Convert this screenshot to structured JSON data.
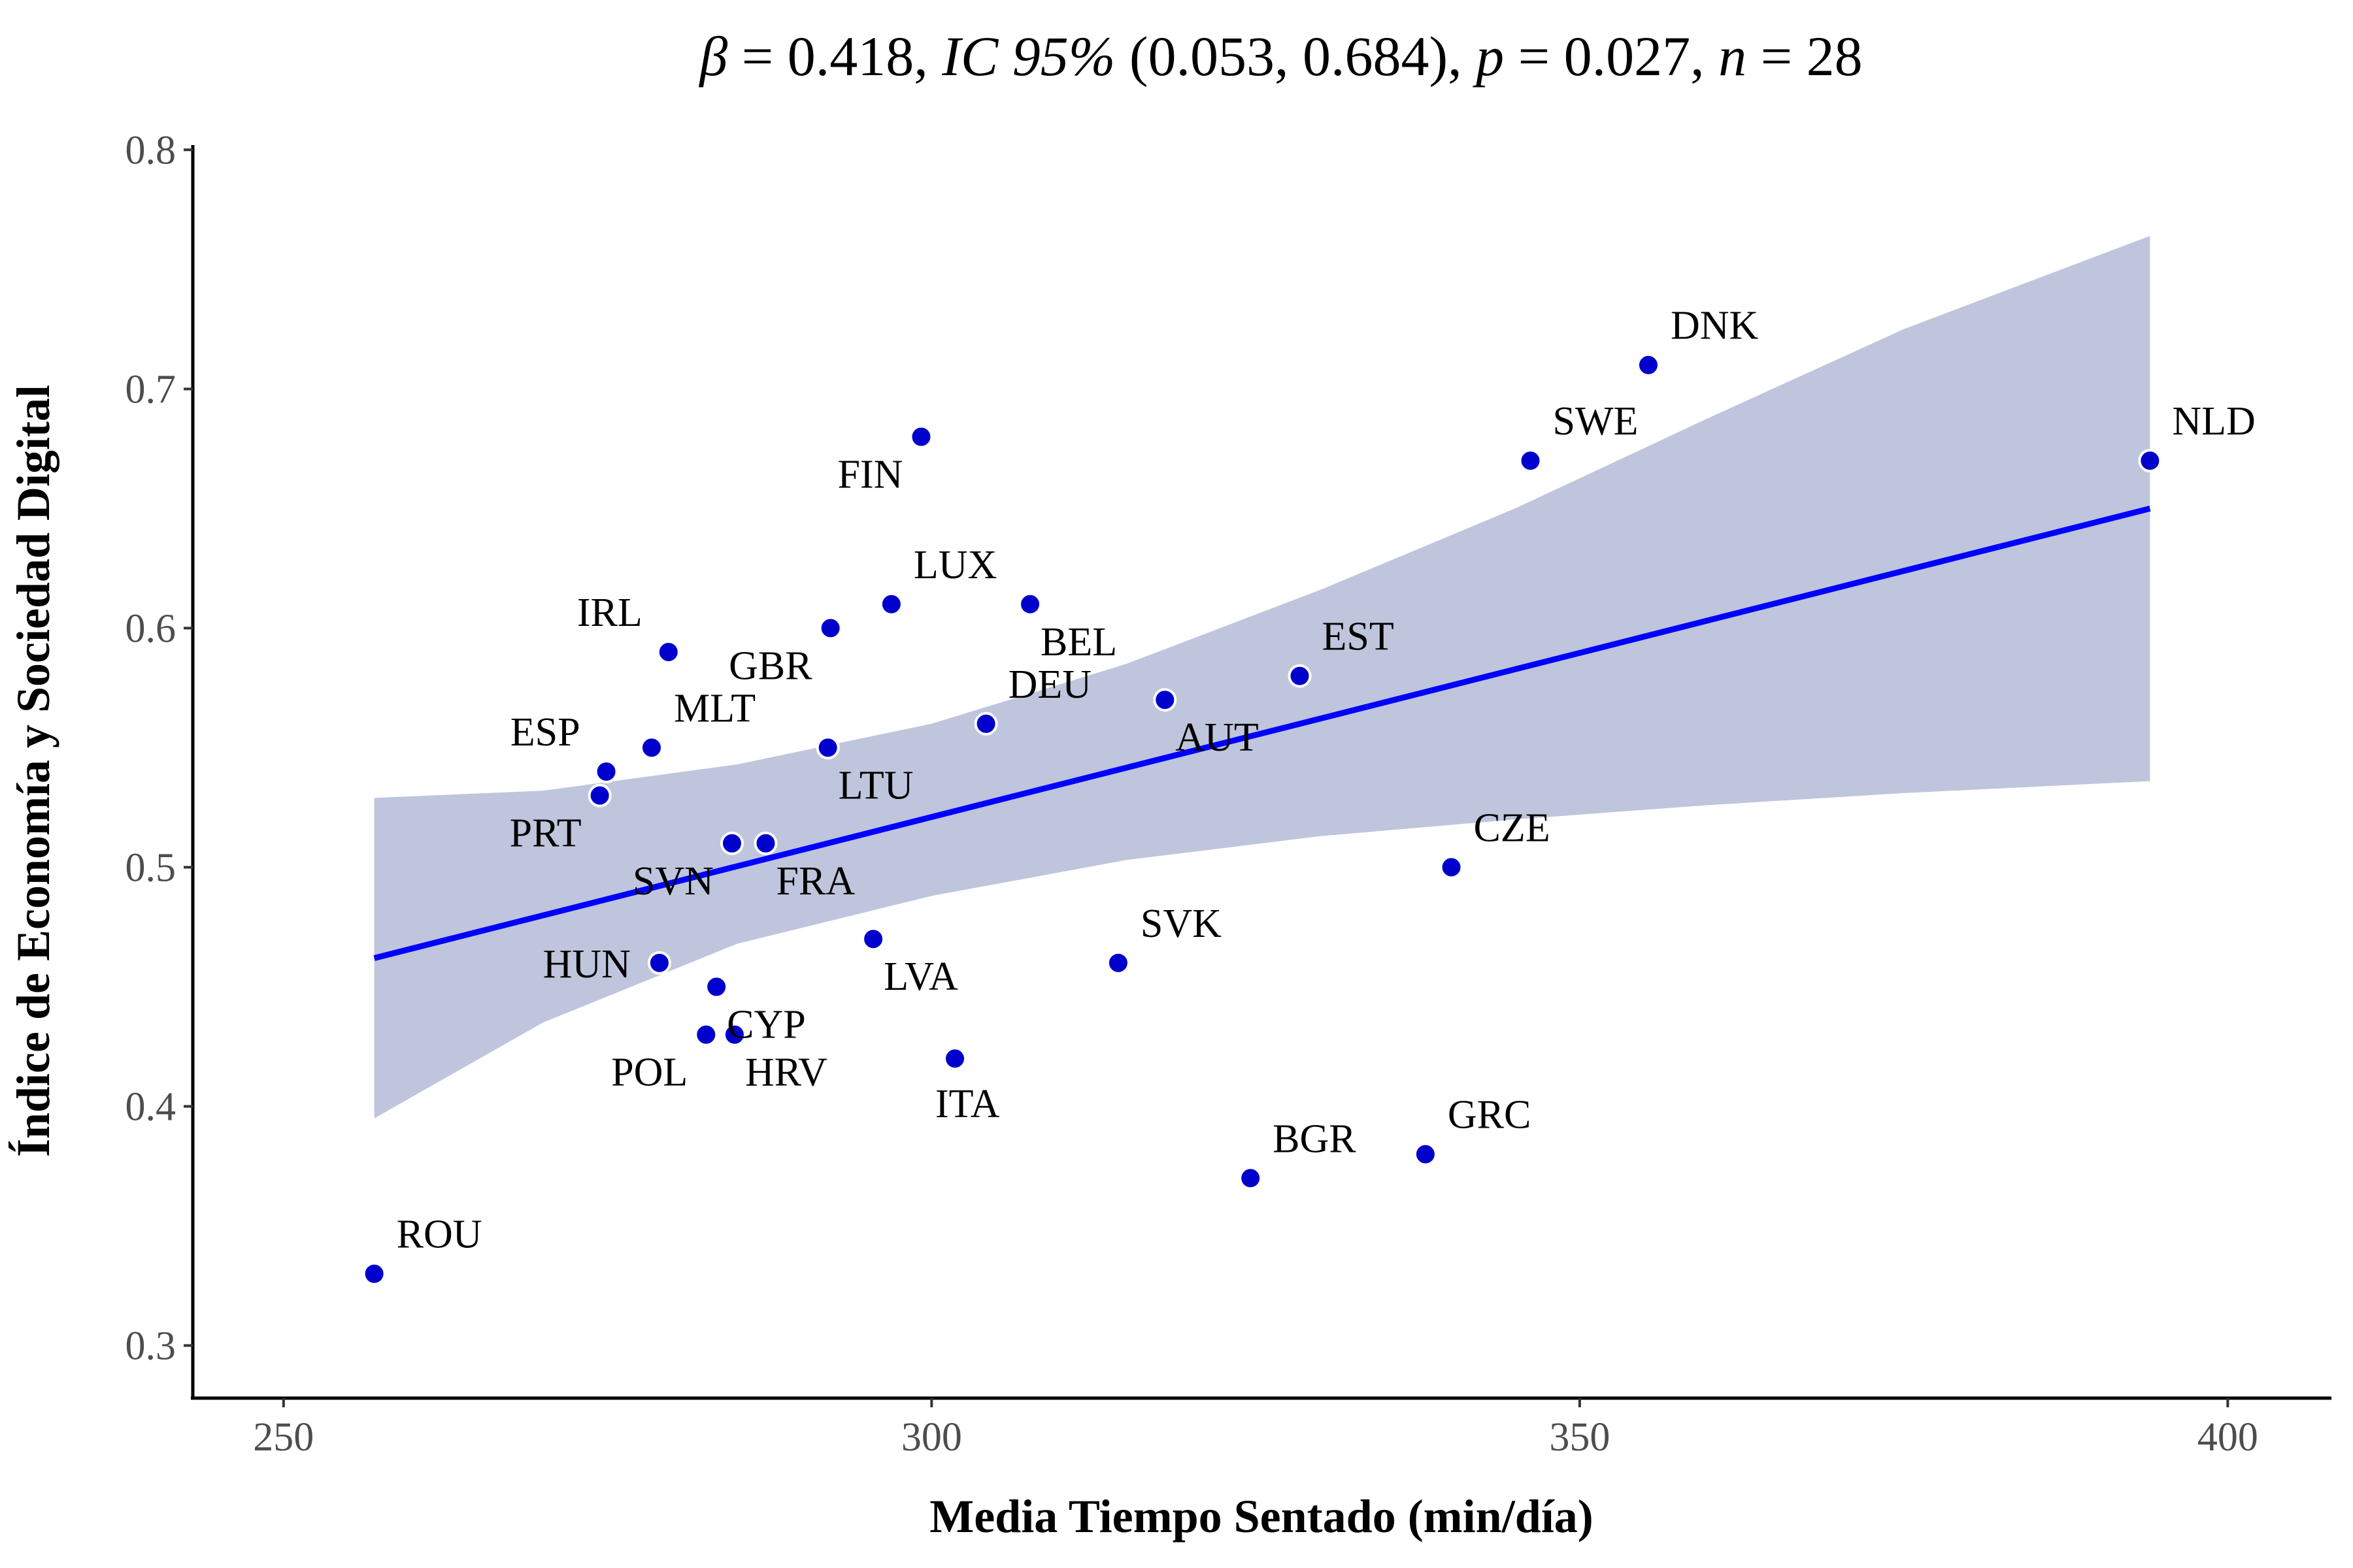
{
  "chart_data": {
    "type": "scatter",
    "title": {
      "beta_symbol": "β",
      "beta_value": " = 0.418, ",
      "ci_label": "IC 95%",
      "ci_value": " (0.053, 0.684), ",
      "p_symbol": "p",
      "p_value": " = 0.027, ",
      "n_symbol": "n",
      "n_value": " = 28"
    },
    "xlabel": "Media Tiempo Sentado (min/día)",
    "ylabel": "Índice de Economía y Sociedad Digital",
    "xlim": [
      243,
      408
    ],
    "ylim": [
      0.278,
      0.802
    ],
    "xticks": [
      250,
      300,
      350,
      400
    ],
    "yticks": [
      0.3,
      0.4,
      0.5,
      0.6,
      0.7,
      0.8
    ],
    "xtick_labels": [
      "250",
      "300",
      "350",
      "400"
    ],
    "ytick_labels": [
      "0.3",
      "0.4",
      "0.5",
      "0.6",
      "0.7",
      "0.8"
    ],
    "grid": false,
    "colors": {
      "points": "#0000cc",
      "point_outline": "#ffffff",
      "line": "#0000ff",
      "ribbon": "#bfc5dc"
    },
    "regression": {
      "x": [
        257,
        394
      ],
      "y": [
        0.462,
        0.65
      ]
    },
    "ci_band": {
      "x": [
        257,
        270,
        285,
        300,
        315,
        330,
        345,
        360,
        375,
        394
      ],
      "lower": [
        0.395,
        0.435,
        0.468,
        0.488,
        0.503,
        0.513,
        0.52,
        0.526,
        0.531,
        0.536
      ],
      "upper": [
        0.529,
        0.532,
        0.543,
        0.56,
        0.585,
        0.616,
        0.65,
        0.688,
        0.725,
        0.764
      ]
    },
    "points": [
      {
        "label": "ROU",
        "x": 257,
        "y": 0.33,
        "anchor": "ne"
      },
      {
        "label": "PRT",
        "x": 274.4,
        "y": 0.53,
        "anchor": "sw"
      },
      {
        "label": "ESP",
        "x": 274.9,
        "y": 0.54,
        "anchor": "nw"
      },
      {
        "label": "MLT",
        "x": 278.4,
        "y": 0.55,
        "anchor": "ne"
      },
      {
        "label": "HUN",
        "x": 279,
        "y": 0.46,
        "anchor": "w"
      },
      {
        "label": "IRL",
        "x": 279.7,
        "y": 0.59,
        "anchor": "nw"
      },
      {
        "label": "POL",
        "x": 282.6,
        "y": 0.43,
        "anchor": "sw"
      },
      {
        "label": "CYP",
        "x": 283.4,
        "y": 0.45,
        "anchor": "se"
      },
      {
        "label": "SVN",
        "x": 284.6,
        "y": 0.51,
        "anchor": "sw"
      },
      {
        "label": "HRV",
        "x": 284.8,
        "y": 0.43,
        "anchor": "se"
      },
      {
        "label": "FRA",
        "x": 287.2,
        "y": 0.51,
        "anchor": "se"
      },
      {
        "label": "LTU",
        "x": 292,
        "y": 0.55,
        "anchor": "se"
      },
      {
        "label": "GBR",
        "x": 292.2,
        "y": 0.6,
        "anchor": "sw"
      },
      {
        "label": "LVA",
        "x": 295.5,
        "y": 0.47,
        "anchor": "se"
      },
      {
        "label": "LUX",
        "x": 296.9,
        "y": 0.61,
        "anchor": "ne"
      },
      {
        "label": "FIN",
        "x": 299.2,
        "y": 0.68,
        "anchor": "sw"
      },
      {
        "label": "ITA",
        "x": 301.8,
        "y": 0.42,
        "anchor": "s"
      },
      {
        "label": "DEU",
        "x": 304.2,
        "y": 0.56,
        "anchor": "ne"
      },
      {
        "label": "BEL",
        "x": 307.6,
        "y": 0.61,
        "anchor": "se"
      },
      {
        "label": "SVK",
        "x": 314.4,
        "y": 0.46,
        "anchor": "ne"
      },
      {
        "label": "AUT",
        "x": 318,
        "y": 0.57,
        "anchor": "se"
      },
      {
        "label": "BGR",
        "x": 324.6,
        "y": 0.37,
        "anchor": "ne"
      },
      {
        "label": "EST",
        "x": 328.4,
        "y": 0.58,
        "anchor": "ne"
      },
      {
        "label": "GRC",
        "x": 338.1,
        "y": 0.38,
        "anchor": "ne"
      },
      {
        "label": "CZE",
        "x": 340.1,
        "y": 0.5,
        "anchor": "ne"
      },
      {
        "label": "SWE",
        "x": 346.2,
        "y": 0.67,
        "anchor": "ne"
      },
      {
        "label": "DNK",
        "x": 355.3,
        "y": 0.71,
        "anchor": "ne"
      },
      {
        "label": "NLD",
        "x": 394,
        "y": 0.67,
        "anchor": "ne"
      }
    ]
  }
}
